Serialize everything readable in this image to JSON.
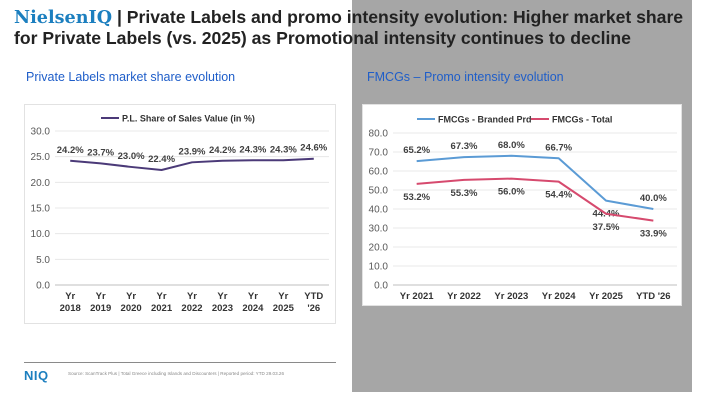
{
  "title": {
    "brand": "NielsenIQ",
    "separator": " | ",
    "text": "Private Labels and promo intensity evolution: Higher market share for Private Labels (vs. 2025) as Promotional intensity continues to decline"
  },
  "subtitles": {
    "left": "Private Labels market share evolution",
    "right": "FMCGs – Promo intensity evolution"
  },
  "footer": {
    "logo": "NIQ",
    "note": "Source: ScanTrack Plus | Total Greece including Islands and Discounters | Reported period: YTD 29.03.26"
  },
  "colors": {
    "accent": "#1f5ec9",
    "brand": "#1c7fbf",
    "pl_line": "#4b3a78",
    "branded": "#5b9bd5",
    "total": "#d64a6e"
  },
  "chart_data": [
    {
      "type": "line",
      "title": "",
      "legend": [
        "P.L. Share of Sales Value (in %)"
      ],
      "legend_position": "top",
      "categories": [
        [
          "Yr",
          "2018"
        ],
        [
          "Yr",
          "2019"
        ],
        [
          "Yr",
          "2020"
        ],
        [
          "Yr",
          "2021"
        ],
        [
          "Yr",
          "2022"
        ],
        [
          "Yr",
          "2023"
        ],
        [
          "Yr",
          "2024"
        ],
        [
          "Yr",
          "2025"
        ],
        [
          "YTD",
          "'26"
        ]
      ],
      "series": [
        {
          "name": "P.L. Share of Sales Value (in %)",
          "values": [
            24.2,
            23.7,
            23.0,
            22.4,
            23.9,
            24.2,
            24.3,
            24.3,
            24.6
          ],
          "labels": [
            "24.2%",
            "23.7%",
            "23.0%",
            "22.4%",
            "23.9%",
            "24.2%",
            "24.3%",
            "24.3%",
            "24.6%"
          ]
        }
      ],
      "ylim": [
        0,
        30
      ],
      "yticks": [
        "0.0",
        "5.0",
        "10.0",
        "15.0",
        "20.0",
        "25.0",
        "30.0"
      ],
      "grid": true,
      "xlabel": "",
      "ylabel": ""
    },
    {
      "type": "line",
      "title": "",
      "legend": [
        "FMCGs - Branded Prd",
        "FMCGs - Total"
      ],
      "legend_position": "top",
      "categories": [
        [
          "Yr 2021"
        ],
        [
          "Yr 2022"
        ],
        [
          "Yr 2023"
        ],
        [
          "Yr 2024"
        ],
        [
          "Yr 2025"
        ],
        [
          "YTD '26"
        ]
      ],
      "series": [
        {
          "name": "FMCGs - Branded Prd",
          "values": [
            65.2,
            67.3,
            68.0,
            66.7,
            44.4,
            40.0
          ],
          "labels": [
            "65.2%",
            "67.3%",
            "68.0%",
            "66.7%",
            "44.4%",
            "40.0%"
          ]
        },
        {
          "name": "FMCGs - Total",
          "values": [
            53.2,
            55.3,
            56.0,
            54.4,
            37.5,
            33.9
          ],
          "labels": [
            "53.2%",
            "55.3%",
            "56.0%",
            "54.4%",
            "37.5%",
            "33.9%"
          ]
        }
      ],
      "ylim": [
        0,
        80
      ],
      "yticks": [
        "0.0",
        "10.0",
        "20.0",
        "30.0",
        "40.0",
        "50.0",
        "60.0",
        "70.0",
        "80.0"
      ],
      "grid": true,
      "xlabel": "",
      "ylabel": ""
    }
  ]
}
